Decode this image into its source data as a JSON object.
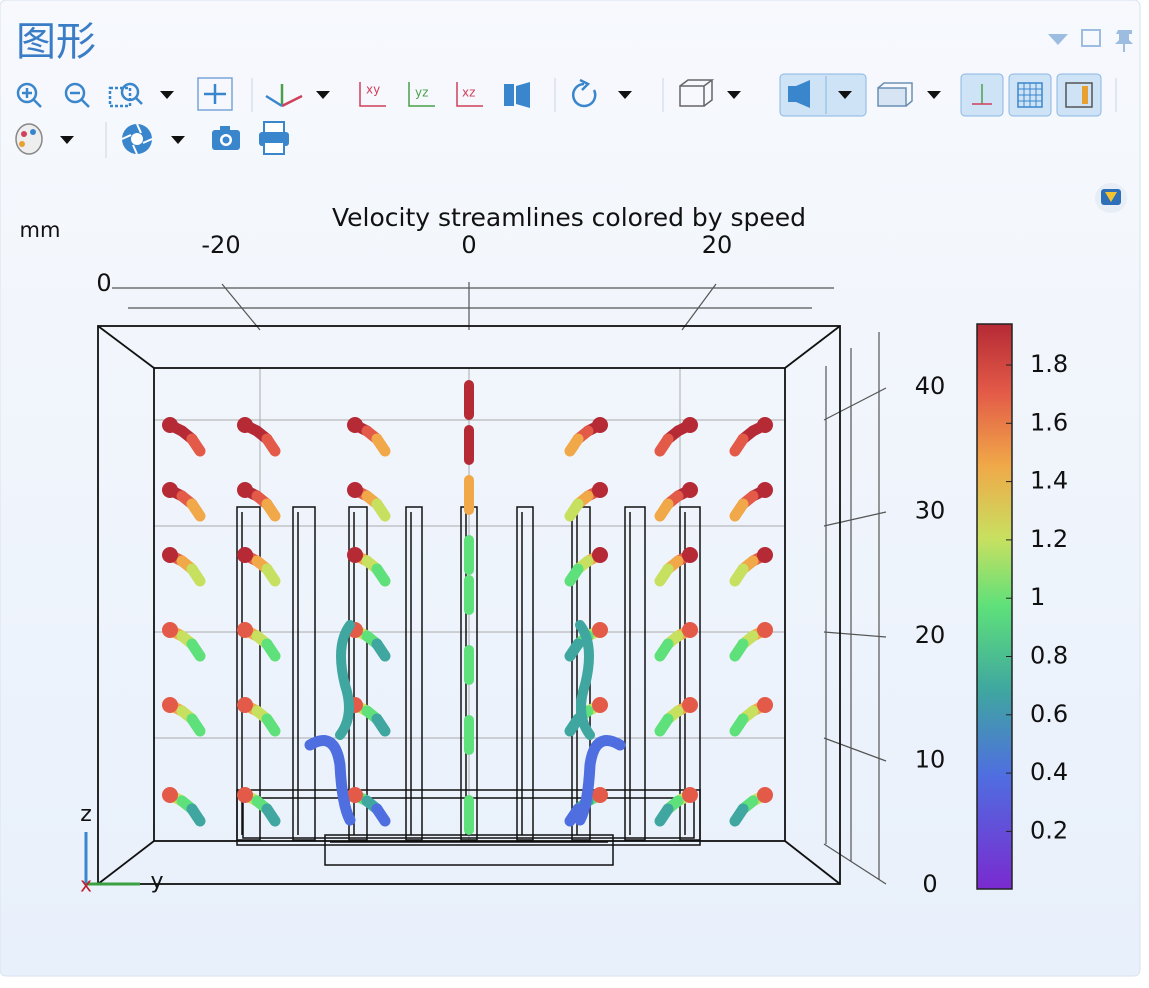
{
  "panel": {
    "title": "图形"
  },
  "toolbar": {
    "view_labels": [
      "xy",
      "yz",
      "xz"
    ]
  },
  "plot": {
    "title": "Velocity streamlines colored by speed",
    "unit": "mm",
    "x_ticks": [
      "-20",
      "0",
      "20"
    ],
    "y_tick": "0",
    "z_ticks": [
      "40",
      "30",
      "20",
      "10",
      "0"
    ],
    "colorbar_ticks": [
      "1.8",
      "1.6",
      "1.4",
      "1.2",
      "1",
      "0.8",
      "0.6",
      "0.4",
      "0.2"
    ],
    "triad": {
      "z": "z",
      "y": "y",
      "x": "x"
    }
  }
}
